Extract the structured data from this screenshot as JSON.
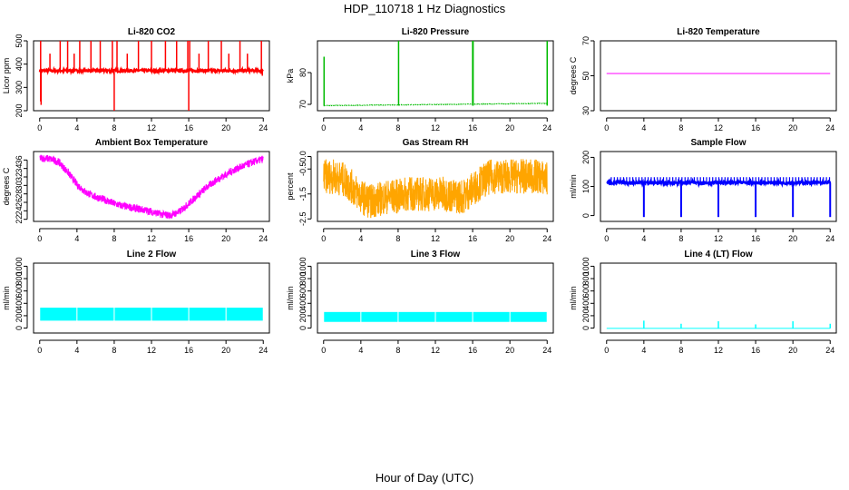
{
  "figure": {
    "title": "HDP_110718  1 Hz Diagnostics",
    "xlabel": "Hour of Day (UTC)"
  },
  "chart_data": [
    {
      "type": "line",
      "title": "Li-820 CO2",
      "ylabel": "Licor ppm",
      "color": "#ff0000",
      "xlim": [
        0,
        24
      ],
      "ylim": [
        200,
        500
      ],
      "xticks": [
        0,
        4,
        8,
        12,
        16,
        20,
        24
      ],
      "yticks": [
        200,
        300,
        400,
        500
      ],
      "series": [
        {
          "name": "CO2",
          "baseline": 372,
          "noise": 6,
          "spikes_up": [
            [
              0.1,
              505
            ],
            [
              1.1,
              445
            ],
            [
              2.2,
              500
            ],
            [
              3.0,
              500
            ],
            [
              3.7,
              445
            ],
            [
              4.3,
              500
            ],
            [
              5.5,
              500
            ],
            [
              6.5,
              500
            ],
            [
              7.8,
              500
            ],
            [
              8.3,
              500
            ],
            [
              9.4,
              445
            ],
            [
              10.6,
              500
            ],
            [
              12.0,
              500
            ],
            [
              13.5,
              500
            ],
            [
              14.7,
              500
            ],
            [
              15.9,
              500
            ],
            [
              16.1,
              505
            ],
            [
              17.1,
              445
            ],
            [
              18.1,
              500
            ],
            [
              19.5,
              500
            ],
            [
              20.3,
              445
            ],
            [
              21.5,
              500
            ],
            [
              22.3,
              445
            ],
            [
              23.8,
              505
            ]
          ],
          "spikes_down": [
            [
              0.1,
              240
            ],
            [
              0.15,
              225
            ],
            [
              8.0,
              200
            ],
            [
              16.0,
              200
            ],
            [
              23.9,
              350
            ]
          ]
        }
      ]
    },
    {
      "type": "line",
      "title": "Li-820 Pressure",
      "ylabel": "kPa",
      "color": "#00bb00",
      "xlim": [
        0,
        24
      ],
      "ylim": [
        68,
        90
      ],
      "xticks": [
        0,
        4,
        8,
        12,
        16,
        20,
        24
      ],
      "yticks": [
        70,
        80
      ],
      "series": [
        {
          "name": "Pressure",
          "start": 69.6,
          "end": 70.3,
          "noise": 0.1,
          "spikes_up": [
            [
              0.05,
              85
            ],
            [
              8.05,
              90
            ],
            [
              16.0,
              90
            ],
            [
              16.05,
              90
            ],
            [
              24.0,
              90
            ]
          ]
        }
      ]
    },
    {
      "type": "line",
      "title": "Li-820 Temperature",
      "ylabel": "degrees C",
      "color": "#ff00ff",
      "xlim": [
        0,
        24
      ],
      "ylim": [
        30,
        70
      ],
      "xticks": [
        0,
        4,
        8,
        12,
        16,
        20,
        24
      ],
      "yticks": [
        30,
        50,
        70
      ],
      "series": [
        {
          "name": "Temperature",
          "value": 51.3
        }
      ]
    },
    {
      "type": "line",
      "title": "Ambient Box Temperature",
      "ylabel": "degrees C",
      "color": "#ff00ff",
      "xlim": [
        0,
        24
      ],
      "ylim": [
        21.5,
        38
      ],
      "xticks": [
        0,
        4,
        8,
        12,
        16,
        20,
        24
      ],
      "yticks": [
        22,
        24,
        26,
        28,
        30,
        32,
        34,
        36
      ],
      "series": [
        {
          "name": "Ambient",
          "noise": 0.9,
          "points": [
            [
              0,
              36.5
            ],
            [
              1,
              36.3
            ],
            [
              2,
              35.6
            ],
            [
              3,
              33.2
            ],
            [
              4,
              30.2
            ],
            [
              5,
              28.3
            ],
            [
              6,
              27.3
            ],
            [
              7,
              26.6
            ],
            [
              8,
              25.7
            ],
            [
              9,
              25.1
            ],
            [
              10,
              24.7
            ],
            [
              11,
              24.3
            ],
            [
              12,
              23.8
            ],
            [
              13,
              23.2
            ],
            [
              14,
              22.9
            ],
            [
              15,
              23.8
            ],
            [
              16,
              25.7
            ],
            [
              17,
              27.8
            ],
            [
              18,
              29.7
            ],
            [
              19,
              31.3
            ],
            [
              20,
              32.6
            ],
            [
              21,
              33.8
            ],
            [
              22,
              34.7
            ],
            [
              23,
              35.6
            ],
            [
              24,
              36.2
            ]
          ]
        }
      ]
    },
    {
      "type": "line",
      "title": "Gas Stream RH",
      "ylabel": "percent",
      "color": "#ffa500",
      "xlim": [
        0,
        24
      ],
      "ylim": [
        -2.6,
        0.2
      ],
      "xticks": [
        0,
        4,
        8,
        12,
        16,
        20,
        24
      ],
      "yticks": [
        -2.5,
        -1.5,
        -0.5,
        0.0
      ],
      "series": [
        {
          "name": "RH",
          "noise": 0.7,
          "points": [
            [
              0,
              -0.8
            ],
            [
              1,
              -0.8
            ],
            [
              2,
              -0.9
            ],
            [
              3,
              -1.2
            ],
            [
              4,
              -1.6
            ],
            [
              5,
              -1.8
            ],
            [
              6,
              -1.7
            ],
            [
              7,
              -1.6
            ],
            [
              8,
              -1.6
            ],
            [
              9,
              -1.5
            ],
            [
              10,
              -1.5
            ],
            [
              11,
              -1.5
            ],
            [
              12,
              -1.5
            ],
            [
              13,
              -1.5
            ],
            [
              14,
              -1.6
            ],
            [
              15,
              -1.6
            ],
            [
              16,
              -1.3
            ],
            [
              17,
              -1.0
            ],
            [
              18,
              -0.8
            ],
            [
              19,
              -0.8
            ],
            [
              20,
              -0.8
            ],
            [
              21,
              -0.8
            ],
            [
              22,
              -0.8
            ],
            [
              23,
              -0.8
            ],
            [
              24,
              -0.9
            ]
          ]
        }
      ]
    },
    {
      "type": "line",
      "title": "Sample Flow",
      "ylabel": "ml/min",
      "color": "#0000ff",
      "xlim": [
        0,
        24
      ],
      "ylim": [
        -20,
        220
      ],
      "xticks": [
        0,
        4,
        8,
        12,
        16,
        20,
        24
      ],
      "yticks": [
        0,
        100,
        200
      ],
      "series": [
        {
          "name": "Sample",
          "baseline": 113,
          "noise": 6,
          "tick_top": 132,
          "tick_every_hours": 0.33,
          "dips": [
            4.0,
            8.0,
            12.0,
            16.0,
            20.0,
            24.0
          ],
          "dip_value": -5
        }
      ]
    },
    {
      "type": "line",
      "title": "Line 2 Flow",
      "ylabel": "ml/min",
      "color": "#00ffff",
      "xlim": [
        0,
        24
      ],
      "ylim": [
        -80,
        1050
      ],
      "xticks": [
        0,
        4,
        8,
        12,
        16,
        20,
        24
      ],
      "yticks": [
        0,
        200,
        400,
        600,
        800,
        1000
      ],
      "series": [
        {
          "name": "Line2",
          "low": 120,
          "high": 330,
          "gaps": [
            4.0,
            8.0,
            12.0,
            16.0,
            20.0
          ]
        }
      ]
    },
    {
      "type": "line",
      "title": "Line 3 Flow",
      "ylabel": "ml/min",
      "color": "#00ffff",
      "xlim": [
        0,
        24
      ],
      "ylim": [
        -80,
        1050
      ],
      "xticks": [
        0,
        4,
        8,
        12,
        16,
        20,
        24
      ],
      "yticks": [
        0,
        200,
        400,
        600,
        800,
        1000
      ],
      "series": [
        {
          "name": "Line3",
          "low": 100,
          "high": 260,
          "gaps": [
            4.0,
            8.0,
            12.0,
            16.0,
            20.0
          ]
        }
      ]
    },
    {
      "type": "line",
      "title": "Line 4 (LT) Flow",
      "ylabel": "ml/min",
      "color": "#00ffff",
      "xlim": [
        0,
        24
      ],
      "ylim": [
        -80,
        1050
      ],
      "xticks": [
        0,
        4,
        8,
        12,
        16,
        20,
        24
      ],
      "yticks": [
        0,
        200,
        400,
        600,
        800,
        1000
      ],
      "series": [
        {
          "name": "Line4",
          "baseline": -5,
          "spikes_up": [
            [
              4.0,
              120
            ],
            [
              8.0,
              70
            ],
            [
              12.0,
              110
            ],
            [
              16.0,
              60
            ],
            [
              20.0,
              110
            ],
            [
              24.0,
              70
            ]
          ]
        }
      ]
    }
  ]
}
